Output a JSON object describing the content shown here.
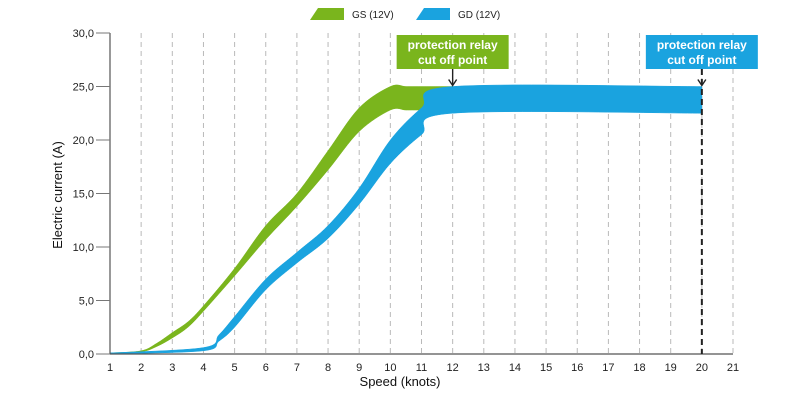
{
  "chart_data": {
    "type": "area",
    "xlabel": "Speed (knots)",
    "ylabel": "Electric current (A)",
    "xlim": [
      1,
      21
    ],
    "ylim": [
      0,
      30
    ],
    "x_ticks": [
      "1",
      "2",
      "3",
      "4",
      "5",
      "6",
      "7",
      "8",
      "9",
      "10",
      "11",
      "12",
      "13",
      "14",
      "15",
      "16",
      "17",
      "18",
      "19",
      "20",
      "21"
    ],
    "y_ticks": [
      "0,0",
      "5,0",
      "10,0",
      "15,0",
      "20,0",
      "25,0",
      "30,0"
    ],
    "grid": "vertical dashed",
    "legend_position": "top-center",
    "series": [
      {
        "name": "GS (12V)",
        "color": "#7ab51d",
        "x": [
          1,
          2,
          2.5,
          3,
          3.5,
          4,
          5,
          6,
          7,
          8,
          9,
          10,
          10.5,
          11,
          12
        ],
        "upper": [
          0.1,
          0.3,
          1.0,
          2.0,
          3.0,
          4.5,
          8.0,
          12.0,
          15.0,
          19.0,
          23.0,
          25.0,
          25.0,
          25.0,
          25.0
        ],
        "lower": [
          0.0,
          0.2,
          0.7,
          1.5,
          2.5,
          4.0,
          7.3,
          10.7,
          13.8,
          17.2,
          20.8,
          22.8,
          22.8,
          22.8,
          22.8
        ]
      },
      {
        "name": "GD (12V)",
        "color": "#1aa3df",
        "x": [
          1,
          4,
          4.5,
          5,
          6,
          7,
          8,
          9,
          10,
          11,
          12,
          20
        ],
        "upper": [
          0.1,
          0.6,
          1.8,
          3.5,
          7.0,
          9.5,
          12.0,
          15.5,
          20.0,
          23.0,
          25.0,
          25.0
        ],
        "lower": [
          0.0,
          0.3,
          1.2,
          2.5,
          6.0,
          8.5,
          10.8,
          14.0,
          17.8,
          20.5,
          22.5,
          22.5
        ]
      }
    ],
    "annotations": [
      {
        "text_line1": "protection relay",
        "text_line2": "cut off point",
        "x": 12,
        "y": 25,
        "color": "#7ab51d",
        "marker": "arrow"
      },
      {
        "text_line1": "protection relay",
        "text_line2": "cut off point",
        "x": 20,
        "y": 25,
        "color": "#1aa3df",
        "marker": "dashed-vertical-line"
      }
    ]
  }
}
